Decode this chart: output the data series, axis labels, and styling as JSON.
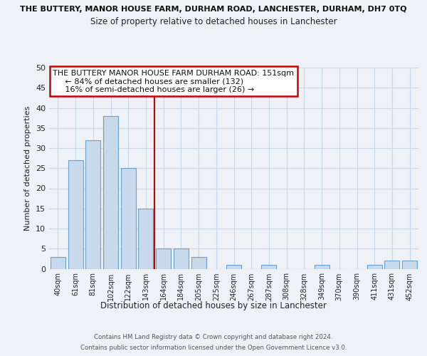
{
  "title_top": "THE BUTTERY, MANOR HOUSE FARM, DURHAM ROAD, LANCHESTER, DURHAM, DH7 0TQ",
  "title_sub": "Size of property relative to detached houses in Lanchester",
  "xlabel": "Distribution of detached houses by size in Lanchester",
  "ylabel": "Number of detached properties",
  "bar_labels": [
    "40sqm",
    "61sqm",
    "81sqm",
    "102sqm",
    "122sqm",
    "143sqm",
    "164sqm",
    "184sqm",
    "205sqm",
    "225sqm",
    "246sqm",
    "267sqm",
    "287sqm",
    "308sqm",
    "328sqm",
    "349sqm",
    "370sqm",
    "390sqm",
    "411sqm",
    "431sqm",
    "452sqm"
  ],
  "bar_values": [
    3,
    27,
    32,
    38,
    25,
    15,
    5,
    5,
    3,
    0,
    1,
    0,
    1,
    0,
    0,
    1,
    0,
    0,
    1,
    2,
    2
  ],
  "bar_color": "#c9d9ec",
  "bar_edge_color": "#6a9fd0",
  "grid_color": "#c8d8e8",
  "vline_color": "#cc0000",
  "ylim": [
    0,
    50
  ],
  "annotation_title": "THE BUTTERY MANOR HOUSE FARM DURHAM ROAD: 151sqm",
  "annotation_line1": "← 84% of detached houses are smaller (132)",
  "annotation_line2": "16% of semi-detached houses are larger (26) →",
  "annotation_box_color": "#ffffff",
  "annotation_box_edge": "#cc0000",
  "footer1": "Contains HM Land Registry data © Crown copyright and database right 2024.",
  "footer2": "Contains public sector information licensed under the Open Government Licence v3.0.",
  "bg_color": "#eef2f7",
  "plot_bg_color": "#eef2f7"
}
